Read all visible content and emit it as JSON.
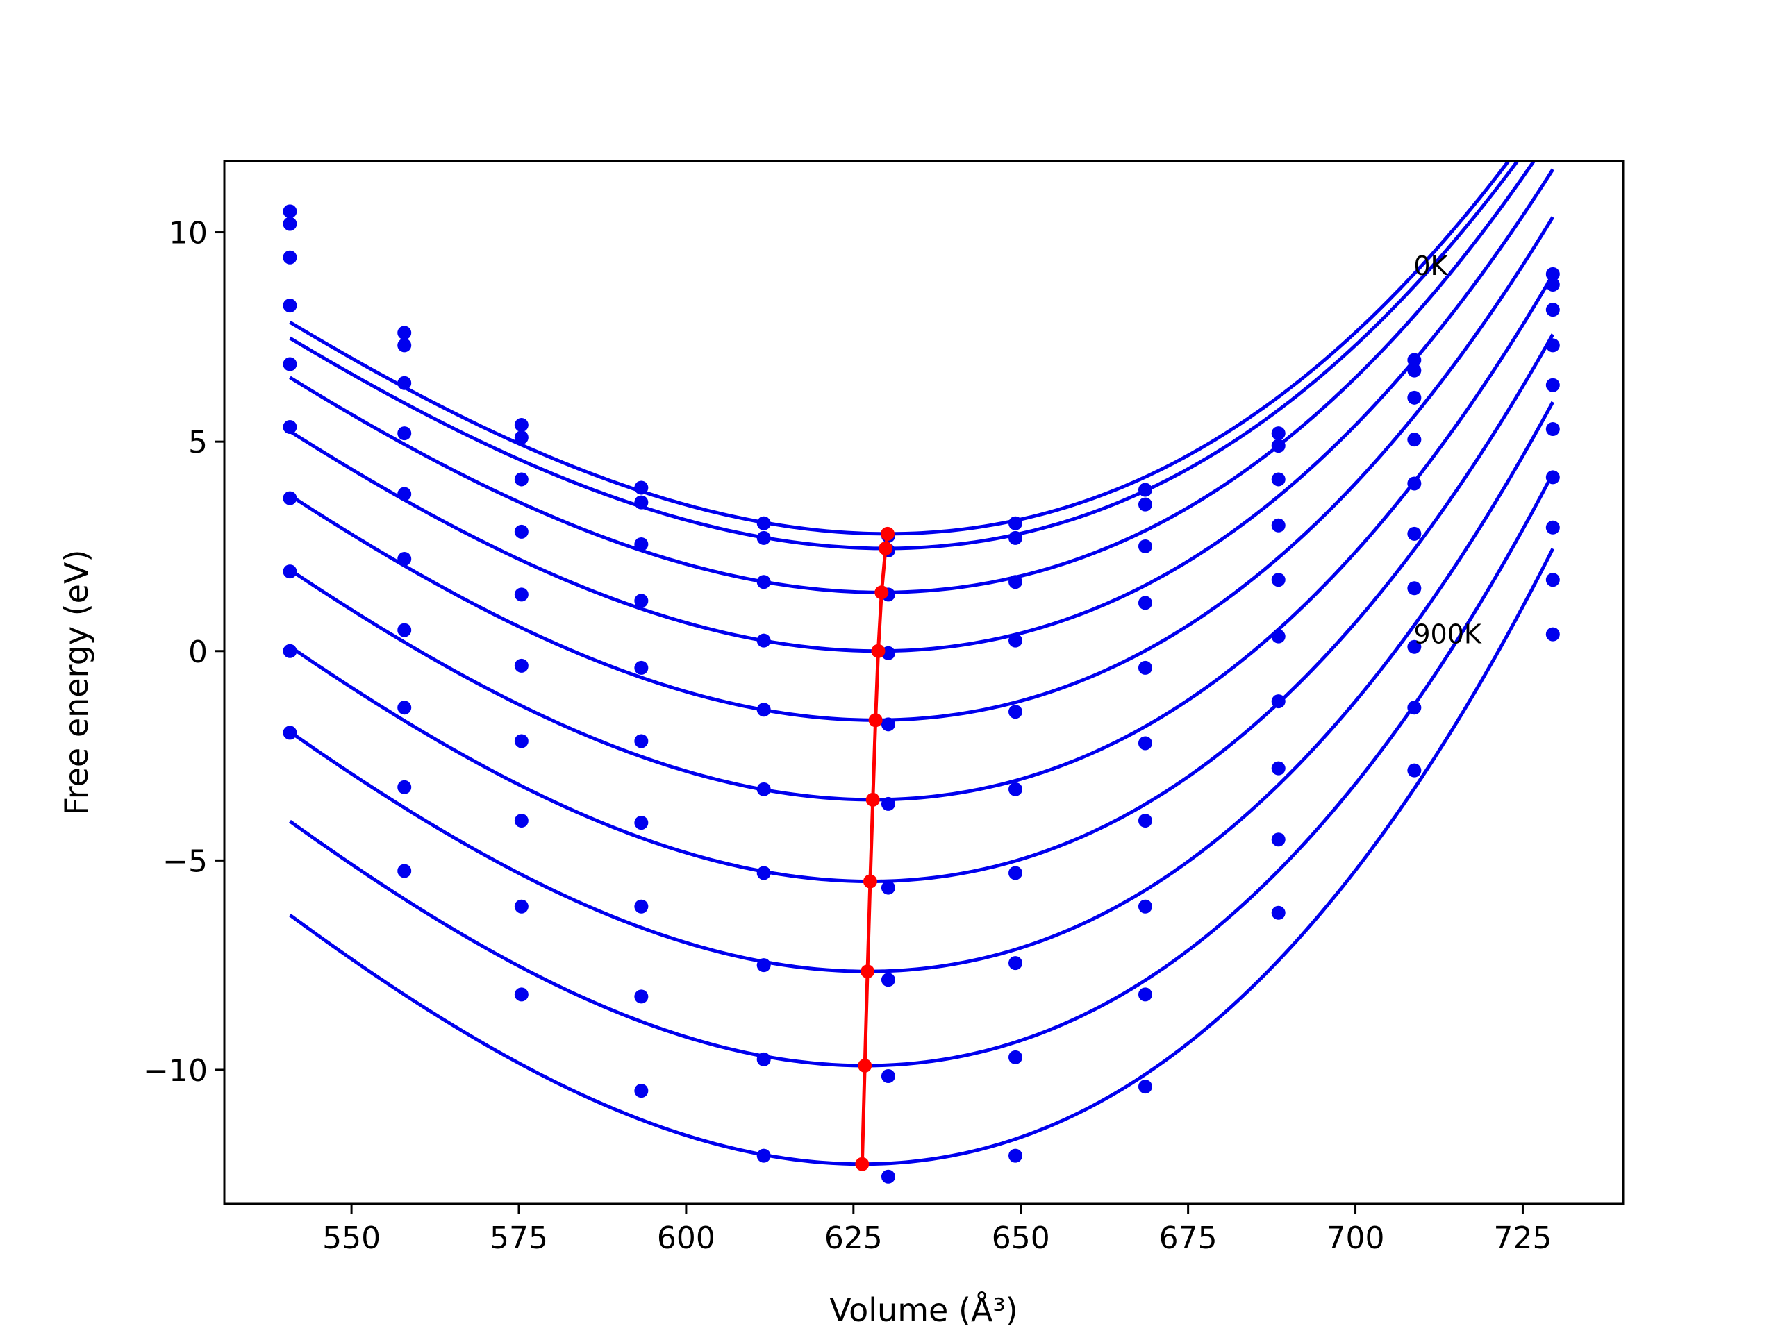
{
  "chart_data": {
    "type": "line",
    "title": "",
    "xlabel": "Volume (Å³)",
    "ylabel": "Free energy (eV)",
    "xlim": [
      531,
      740
    ],
    "ylim": [
      -13.2,
      11.7
    ],
    "xticks": [
      550,
      575,
      600,
      625,
      650,
      675,
      700,
      725
    ],
    "yticks": [
      -10,
      -5,
      0,
      5,
      10
    ],
    "xtick_labels": [
      "550",
      "575",
      "600",
      "625",
      "650",
      "675",
      "700",
      "725"
    ],
    "ytick_labels": [
      "−10",
      "−5",
      "0",
      "5",
      "10"
    ],
    "grid": false,
    "legend": "none",
    "annotations": [
      {
        "text": "0K",
        "x": 708.7,
        "y": 9.2
      },
      {
        "text": "900K",
        "x": 708.7,
        "y": 0.4
      }
    ],
    "colors": {
      "curves": "#0000ee",
      "points": "#0000ee",
      "minimum_line": "#ff0000"
    },
    "volumes": [
      540.8,
      557.9,
      575.4,
      593.3,
      611.6,
      630.2,
      649.2,
      668.6,
      688.5,
      708.8,
      729.5
    ],
    "series": [
      {
        "fit": {
          "min_volume": 630.1,
          "min_energy": 2.8,
          "k": 0.00083,
          "c": 2.2e-06
        },
        "points": [
          10.5,
          7.6,
          5.4,
          3.9,
          3.05,
          2.75,
          3.05,
          3.85,
          5.2,
          6.95,
          9.0
        ]
      },
      {
        "fit": {
          "min_volume": 629.8,
          "min_energy": 2.45,
          "k": 0.00083,
          "c": 2.2e-06
        },
        "points": [
          10.2,
          7.3,
          5.1,
          3.55,
          2.7,
          2.4,
          2.7,
          3.5,
          4.9,
          6.7,
          8.75
        ]
      },
      {
        "fit": {
          "min_volume": 629.2,
          "min_energy": 1.4,
          "k": 0.00086,
          "c": 2.3e-06
        },
        "points": [
          9.4,
          6.4,
          4.1,
          2.55,
          1.65,
          1.35,
          1.65,
          2.5,
          4.1,
          6.05,
          8.15
        ]
      },
      {
        "fit": {
          "min_volume": 628.7,
          "min_energy": 0.0,
          "k": 0.00089,
          "c": 2.4e-06
        },
        "points": [
          8.25,
          5.2,
          2.85,
          1.2,
          0.25,
          -0.05,
          0.25,
          1.15,
          3.0,
          5.05,
          7.3
        ]
      },
      {
        "fit": {
          "min_volume": 628.3,
          "min_energy": -1.65,
          "k": 0.00092,
          "c": 2.5e-06
        },
        "points": [
          6.85,
          3.75,
          1.35,
          -0.4,
          -1.4,
          -1.75,
          -1.45,
          -0.4,
          1.7,
          4.0,
          6.35
        ]
      },
      {
        "fit": {
          "min_volume": 627.9,
          "min_energy": -3.55,
          "k": 0.00095,
          "c": 2.6e-06
        },
        "points": [
          5.35,
          2.2,
          -0.35,
          -2.15,
          -3.3,
          -3.65,
          -3.3,
          -2.2,
          0.35,
          2.8,
          5.3
        ]
      },
      {
        "fit": {
          "min_volume": 627.5,
          "min_energy": -5.5,
          "k": 0.00098,
          "c": 2.7e-06
        },
        "points": [
          3.65,
          0.5,
          -2.15,
          -4.1,
          -5.3,
          -5.65,
          -5.3,
          -4.05,
          -1.2,
          1.5,
          4.15
        ]
      },
      {
        "fit": {
          "min_volume": 627.1,
          "min_energy": -7.65,
          "k": 0.00101,
          "c": 2.8e-06
        },
        "points": [
          1.9,
          -1.35,
          -4.05,
          -6.1,
          -7.5,
          -7.85,
          -7.45,
          -6.1,
          -2.8,
          0.1,
          2.95
        ]
      },
      {
        "fit": {
          "min_volume": 626.7,
          "min_energy": -9.9,
          "k": 0.00104,
          "c": 2.9e-06
        },
        "points": [
          0.0,
          -3.25,
          -6.1,
          -8.25,
          -9.75,
          -10.15,
          -9.7,
          -8.2,
          -4.5,
          -1.35,
          1.7
        ]
      },
      {
        "fit": {
          "min_volume": 626.3,
          "min_energy": -12.25,
          "k": 0.00107,
          "c": 3e-06
        },
        "points": [
          -1.95,
          -5.25,
          -8.2,
          -10.5,
          -12.05,
          -12.55,
          -12.05,
          -10.4,
          -6.25,
          -2.85,
          0.4
        ]
      }
    ],
    "minimum_line": {
      "x": [
        630.1,
        629.8,
        629.2,
        628.7,
        628.3,
        627.9,
        627.5,
        627.1,
        626.7,
        626.3
      ],
      "y": [
        2.8,
        2.45,
        1.4,
        0.0,
        -1.65,
        -3.55,
        -5.5,
        -7.65,
        -9.9,
        -12.25
      ]
    }
  }
}
